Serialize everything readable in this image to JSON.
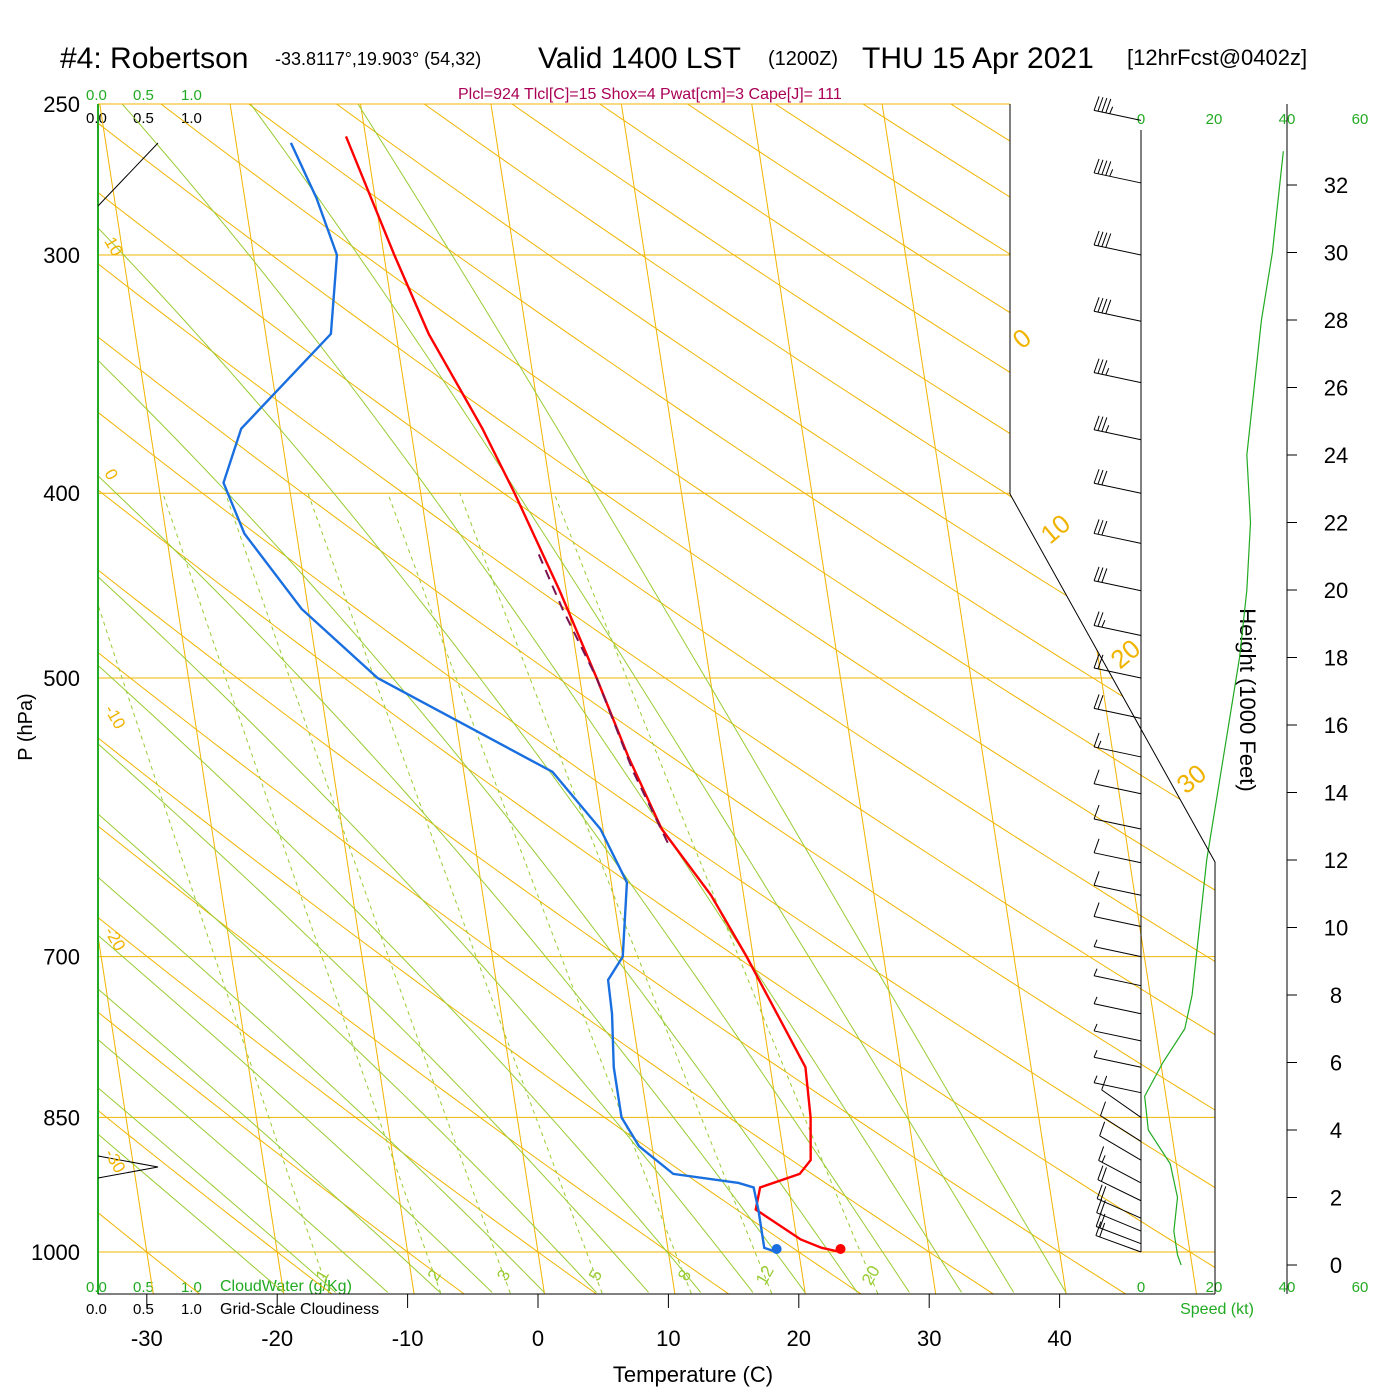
{
  "header": {
    "station": "#4: Robertson",
    "coords": "-33.8117°,19.903° (54,32)",
    "valid": "Valid 1400 LST",
    "zulu": "(1200Z)",
    "date": "THU 15 Apr 2021",
    "fcst": "[12hrFcst@0402z]",
    "indices": "Plcl=924 Tlcl[C]=15 Shox=4 Pwat[cm]=3 Cape[J]= 111"
  },
  "scales": {
    "cloud_top_green": [
      "0.0",
      "0.5",
      "1.0"
    ],
    "cloud_top_black": [
      "0.0",
      "0.5",
      "1.0"
    ],
    "cloud_bottom_green": [
      "0.0",
      "0.5",
      "1.0"
    ],
    "cloud_bottom_black": [
      "0.0",
      "0.5",
      "1.0"
    ],
    "cloudwater_label": "CloudWater (g/Kg)",
    "cloudiness_label": "Grid-Scale Cloudiness",
    "speed_ticks_top": [
      "0",
      "20",
      "40",
      "60"
    ],
    "speed_ticks_bottom": [
      "0",
      "20",
      "40",
      "60"
    ],
    "speed_label": "Speed (kt)"
  },
  "colors": {
    "isotherm": "#f0b400",
    "dry_adiabat": "#f0b400",
    "moist_adiabat": "#99cc33",
    "mixing_ratio": "#99cc33",
    "temperature": "#ff0000",
    "dewpoint": "#1a6fe0",
    "parcel": "#7a1450",
    "speed": "#22aa22",
    "indices": "#aa0055"
  },
  "chart_data": {
    "type": "line",
    "xlabel": "Temperature (C)",
    "ylabel": "P (hPa)",
    "y2label": "Height (1000 Feet)",
    "x_ticks": [
      "-30",
      "-20",
      "-10",
      "0",
      "10",
      "20",
      "30",
      "40"
    ],
    "pressure_ticks": [
      "250",
      "300",
      "400",
      "500",
      "700",
      "850",
      "1000"
    ],
    "height_ticks": [
      "0",
      "2",
      "4",
      "6",
      "8",
      "10",
      "12",
      "14",
      "16",
      "18",
      "20",
      "22",
      "24",
      "26",
      "28",
      "30",
      "32"
    ],
    "isotherm_labels": [
      "10",
      "0",
      "-10",
      "-20",
      "-30",
      "0",
      "10",
      "20",
      "30"
    ],
    "mixing_ratio_labels": [
      "1",
      "2",
      "3",
      "5",
      "8",
      "12",
      "20"
    ],
    "series": [
      {
        "name": "temperature",
        "points": [
          [
            1000,
            23.2
          ],
          [
            995,
            21.8
          ],
          [
            985,
            20.3
          ],
          [
            950,
            17.2
          ],
          [
            925,
            17.8
          ],
          [
            910,
            21.0
          ],
          [
            895,
            22.0
          ],
          [
            850,
            22.5
          ],
          [
            800,
            22.7
          ],
          [
            700,
            19.5
          ],
          [
            650,
            17.5
          ],
          [
            600,
            14.5
          ],
          [
            550,
            12.8
          ],
          [
            500,
            11.3
          ],
          [
            450,
            9.5
          ],
          [
            400,
            7.2
          ],
          [
            370,
            5.5
          ],
          [
            330,
            2.5
          ],
          [
            300,
            0.8
          ],
          [
            260,
            -1.5
          ]
        ]
      },
      {
        "name": "dewpoint",
        "points": [
          [
            1000,
            18.3
          ],
          [
            995,
            17.4
          ],
          [
            950,
            17.4
          ],
          [
            925,
            17.3
          ],
          [
            920,
            16.2
          ],
          [
            910,
            11.3
          ],
          [
            880,
            9.0
          ],
          [
            850,
            8.0
          ],
          [
            800,
            8.0
          ],
          [
            750,
            8.5
          ],
          [
            720,
            8.6
          ],
          [
            700,
            10.0
          ],
          [
            640,
            11.2
          ],
          [
            600,
            9.8
          ],
          [
            560,
            6.8
          ],
          [
            500,
            -5.5
          ],
          [
            460,
            -10.5
          ],
          [
            420,
            -14.0
          ],
          [
            395,
            -15.0
          ],
          [
            370,
            -13.0
          ],
          [
            330,
            -5.0
          ],
          [
            300,
            -3.6
          ],
          [
            280,
            -4.5
          ],
          [
            262,
            -5.8
          ]
        ]
      },
      {
        "name": "parcel",
        "points": [
          [
            610,
            14.8
          ],
          [
            560,
            13.0
          ],
          [
            500,
            11.3
          ],
          [
            460,
            9.5
          ],
          [
            430,
            8.3
          ]
        ]
      }
    ],
    "wind_barbs_kt": [
      [
        1000,
        18
      ],
      [
        990,
        18
      ],
      [
        975,
        19
      ],
      [
        960,
        20
      ],
      [
        940,
        21
      ],
      [
        920,
        15
      ],
      [
        895,
        12
      ],
      [
        875,
        10
      ],
      [
        850,
        8
      ],
      [
        825,
        7
      ],
      [
        800,
        6
      ],
      [
        775,
        6
      ],
      [
        750,
        5
      ],
      [
        725,
        6
      ],
      [
        700,
        7
      ],
      [
        675,
        8
      ],
      [
        650,
        8
      ],
      [
        625,
        9
      ],
      [
        600,
        10
      ],
      [
        575,
        12
      ],
      [
        550,
        15
      ],
      [
        525,
        18
      ],
      [
        500,
        20
      ],
      [
        475,
        25
      ],
      [
        450,
        28
      ],
      [
        425,
        30
      ],
      [
        400,
        32
      ],
      [
        375,
        34
      ],
      [
        350,
        36
      ],
      [
        325,
        38
      ],
      [
        300,
        40
      ],
      [
        275,
        44
      ],
      [
        255,
        46
      ]
    ],
    "speed_profile_kt": [
      [
        0,
        11
      ],
      [
        0.3,
        10
      ],
      [
        1,
        9
      ],
      [
        2,
        10
      ],
      [
        3,
        8
      ],
      [
        4,
        2
      ],
      [
        5,
        1
      ],
      [
        6,
        6
      ],
      [
        7,
        12
      ],
      [
        8,
        14
      ],
      [
        9,
        15
      ],
      [
        10,
        16
      ],
      [
        12,
        18
      ],
      [
        14,
        21
      ],
      [
        16,
        24
      ],
      [
        18,
        27
      ],
      [
        20,
        29
      ],
      [
        22,
        30
      ],
      [
        24,
        29
      ],
      [
        26,
        31
      ],
      [
        28,
        33
      ],
      [
        30,
        36
      ],
      [
        32,
        38
      ],
      [
        33,
        39
      ]
    ]
  }
}
